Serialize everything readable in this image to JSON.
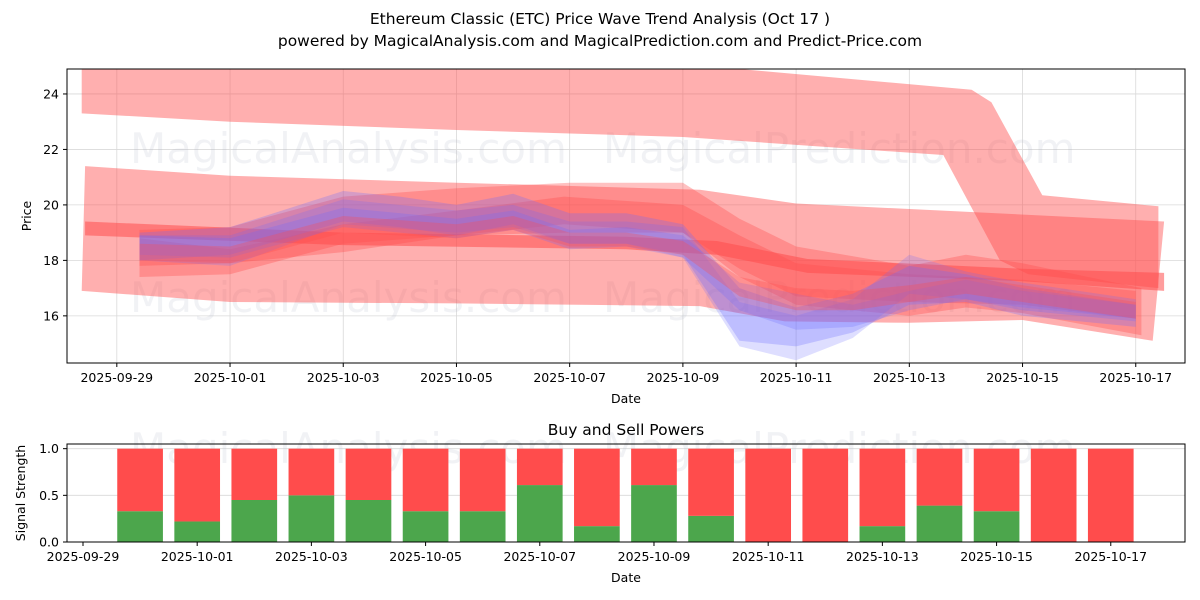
{
  "header": {
    "title": "Ethereum Classic (ETC) Price Wave Trend Analysis (Oct 17 )",
    "subtitle": "powered by MagicalAnalysis.com and MagicalPrediction.com and Predict-Price.com"
  },
  "watermarks": [
    "MagicalAnalysis.com",
    "MagicalPrediction.com"
  ],
  "colors": {
    "band_red": "#ff4d4d",
    "band_blue": "#6a6aff",
    "buy": "#4ca64c",
    "sell": "#ff4c4c",
    "grid": "#d9d9d9"
  },
  "chart_data": [
    {
      "type": "area",
      "title": "",
      "xlabel": "Date",
      "ylabel": "Price",
      "x_origin_date": "2025-09-29",
      "x_unit": "days since 2025-09-29",
      "xlim": [
        -0.88,
        18.87
      ],
      "ylim": [
        14.3,
        24.9
      ],
      "grid": true,
      "x_tick_labels": [
        "2025-09-29",
        "2025-10-01",
        "2025-10-03",
        "2025-10-05",
        "2025-10-07",
        "2025-10-09",
        "2025-10-11",
        "2025-10-13",
        "2025-10-15",
        "2025-10-17"
      ],
      "x_ticks": [
        0,
        2,
        4,
        6,
        8,
        10,
        12,
        14,
        16,
        18
      ],
      "y_ticks": [
        16,
        18,
        20,
        22,
        24
      ],
      "y_tick_labels": [
        "16",
        "18",
        "20",
        "22",
        "24"
      ],
      "bands": [
        {
          "name": "long-wave-upper",
          "color": "red",
          "opacity": 0.45,
          "upper": [
            [
              -0.62,
              25.6
            ],
            [
              5,
              25.3
            ],
            [
              11,
              24.9
            ],
            [
              15.1,
              24.15
            ],
            [
              15.45,
              23.7
            ],
            [
              16.35,
              20.35
            ],
            [
              18.4,
              19.95
            ]
          ],
          "lower": [
            [
              -0.62,
              23.3
            ],
            [
              2,
              23.0
            ],
            [
              6,
              22.7
            ],
            [
              10,
              22.45
            ],
            [
              14.6,
              21.8
            ],
            [
              15.6,
              18.0
            ],
            [
              16.1,
              17.5
            ],
            [
              18.4,
              17.0
            ]
          ]
        },
        {
          "name": "long-wave-wide",
          "color": "red",
          "opacity": 0.45,
          "upper": [
            [
              -0.56,
              21.4
            ],
            [
              2,
              21.05
            ],
            [
              6,
              20.8
            ],
            [
              10.3,
              20.55
            ],
            [
              12,
              20.05
            ],
            [
              18.5,
              19.4
            ]
          ],
          "lower": [
            [
              -0.62,
              16.9
            ],
            [
              2,
              16.5
            ],
            [
              6,
              16.45
            ],
            [
              10.3,
              16.35
            ],
            [
              11.8,
              15.8
            ],
            [
              14,
              15.75
            ],
            [
              16,
              15.85
            ],
            [
              18.3,
              15.1
            ]
          ]
        },
        {
          "name": "trend-line",
          "color": "red",
          "opacity": 0.55,
          "upper": [
            [
              -0.56,
              19.4
            ],
            [
              4,
              19.0
            ],
            [
              9,
              18.85
            ],
            [
              10.6,
              18.7
            ],
            [
              12.2,
              18.05
            ],
            [
              16,
              17.7
            ],
            [
              18.5,
              17.55
            ]
          ],
          "lower": [
            [
              -0.56,
              18.9
            ],
            [
              4,
              18.55
            ],
            [
              9,
              18.4
            ],
            [
              10.6,
              18.2
            ],
            [
              12.2,
              17.55
            ],
            [
              16,
              17.25
            ],
            [
              18.5,
              16.9
            ]
          ]
        },
        {
          "name": "wave-1",
          "color": "red",
          "opacity": 0.35,
          "upper": [
            [
              0.4,
              19.1
            ],
            [
              2,
              19.2
            ],
            [
              4,
              20.3
            ],
            [
              6,
              20.6
            ],
            [
              8,
              20.8
            ],
            [
              10,
              20.8
            ],
            [
              11,
              19.5
            ],
            [
              12,
              18.5
            ],
            [
              14,
              17.8
            ],
            [
              15,
              18.2
            ],
            [
              16,
              17.9
            ],
            [
              18.1,
              17.0
            ]
          ],
          "lower": [
            [
              0.4,
              17.4
            ],
            [
              2,
              17.5
            ],
            [
              4,
              18.6
            ],
            [
              6,
              18.9
            ],
            [
              8,
              19.0
            ],
            [
              10,
              19.0
            ],
            [
              11,
              17.4
            ],
            [
              12,
              16.4
            ],
            [
              14,
              16.0
            ],
            [
              15,
              16.3
            ],
            [
              16,
              16.1
            ],
            [
              18.1,
              15.3
            ]
          ]
        },
        {
          "name": "wave-2",
          "color": "red",
          "opacity": 0.35,
          "upper": [
            [
              0.4,
              18.8
            ],
            [
              2,
              18.4
            ],
            [
              4,
              19.3
            ],
            [
              6,
              19.8
            ],
            [
              7.9,
              20.3
            ],
            [
              10,
              20.0
            ],
            [
              11,
              18.9
            ],
            [
              12,
              17.9
            ],
            [
              14,
              17.5
            ],
            [
              16,
              17.3
            ],
            [
              18,
              16.9
            ]
          ],
          "lower": [
            [
              0.4,
              17.8
            ],
            [
              2,
              17.9
            ],
            [
              4,
              18.3
            ],
            [
              6,
              18.9
            ],
            [
              7.9,
              19.3
            ],
            [
              10,
              19.0
            ],
            [
              11,
              17.7
            ],
            [
              12,
              16.7
            ],
            [
              14,
              16.5
            ],
            [
              16,
              16.4
            ],
            [
              18,
              15.9
            ]
          ]
        },
        {
          "name": "wave-blue-1",
          "color": "blue",
          "opacity": 0.28,
          "upper": [
            [
              0.4,
              19.0
            ],
            [
              2,
              19.2
            ],
            [
              4,
              20.5
            ],
            [
              5,
              20.3
            ],
            [
              6,
              20.0
            ],
            [
              7,
              20.4
            ],
            [
              8,
              19.7
            ],
            [
              9,
              19.7
            ],
            [
              10,
              19.3
            ],
            [
              11,
              17.0
            ],
            [
              12,
              16.3
            ],
            [
              13,
              16.8
            ],
            [
              14,
              17.8
            ],
            [
              15,
              17.5
            ],
            [
              16,
              17.0
            ],
            [
              18,
              16.4
            ]
          ],
          "lower": [
            [
              0.4,
              18.0
            ],
            [
              2,
              18.2
            ],
            [
              4,
              19.4
            ],
            [
              5,
              19.2
            ],
            [
              6,
              18.9
            ],
            [
              7,
              19.3
            ],
            [
              8,
              18.6
            ],
            [
              9,
              18.6
            ],
            [
              10,
              18.2
            ],
            [
              11,
              15.1
            ],
            [
              12,
              14.9
            ],
            [
              13,
              15.4
            ],
            [
              14,
              16.4
            ],
            [
              15,
              16.5
            ],
            [
              16,
              16.0
            ],
            [
              18,
              15.6
            ]
          ]
        },
        {
          "name": "wave-blue-2",
          "color": "blue",
          "opacity": 0.22,
          "upper": [
            [
              0.4,
              18.9
            ],
            [
              2,
              18.9
            ],
            [
              4,
              20.2
            ],
            [
              6,
              19.8
            ],
            [
              7,
              20.0
            ],
            [
              8,
              19.4
            ],
            [
              9,
              19.4
            ],
            [
              10,
              19.2
            ],
            [
              11,
              16.5
            ],
            [
              12,
              16.0
            ],
            [
              13,
              16.6
            ],
            [
              14,
              18.2
            ],
            [
              15,
              17.6
            ],
            [
              16,
              17.2
            ],
            [
              18,
              16.6
            ]
          ],
          "lower": [
            [
              0.4,
              18.0
            ],
            [
              2,
              17.8
            ],
            [
              4,
              19.3
            ],
            [
              6,
              19.0
            ],
            [
              7,
              19.2
            ],
            [
              8,
              18.6
            ],
            [
              9,
              18.6
            ],
            [
              10,
              18.1
            ],
            [
              11,
              14.9
            ],
            [
              12,
              14.4
            ],
            [
              13,
              15.2
            ],
            [
              14,
              16.8
            ],
            [
              15,
              16.6
            ],
            [
              16,
              16.3
            ],
            [
              18,
              15.9
            ]
          ]
        },
        {
          "name": "wave-blue-3",
          "color": "blue",
          "opacity": 0.25,
          "upper": [
            [
              0.4,
              18.9
            ],
            [
              2,
              18.8
            ],
            [
              4,
              19.9
            ],
            [
              6,
              19.5
            ],
            [
              7,
              19.8
            ],
            [
              8,
              19.1
            ],
            [
              9,
              19.2
            ],
            [
              10,
              18.9
            ],
            [
              11,
              17.2
            ],
            [
              12,
              16.8
            ],
            [
              13,
              16.4
            ],
            [
              14,
              16.9
            ],
            [
              15,
              17.3
            ],
            [
              16,
              16.9
            ],
            [
              18,
              16.4
            ]
          ],
          "lower": [
            [
              0.4,
              18.2
            ],
            [
              2,
              18.1
            ],
            [
              4,
              19.2
            ],
            [
              6,
              18.8
            ],
            [
              7,
              19.1
            ],
            [
              8,
              18.4
            ],
            [
              9,
              18.5
            ],
            [
              10,
              18.1
            ],
            [
              11,
              16.2
            ],
            [
              12,
              15.5
            ],
            [
              13,
              15.6
            ],
            [
              14,
              16.2
            ],
            [
              15,
              16.6
            ],
            [
              16,
              16.2
            ],
            [
              18,
              15.8
            ]
          ]
        },
        {
          "name": "wave-3",
          "color": "red",
          "opacity": 0.3,
          "upper": [
            [
              0.4,
              18.6
            ],
            [
              2,
              18.5
            ],
            [
              4,
              19.6
            ],
            [
              6,
              19.3
            ],
            [
              7,
              19.6
            ],
            [
              8,
              19.0
            ],
            [
              9,
              19.0
            ],
            [
              10,
              18.7
            ],
            [
              11,
              17.4
            ],
            [
              12,
              17.0
            ],
            [
              13,
              16.9
            ],
            [
              14,
              17.1
            ],
            [
              15,
              17.4
            ],
            [
              16,
              17.1
            ],
            [
              18,
              16.5
            ]
          ],
          "lower": [
            [
              0.4,
              18.0
            ],
            [
              2,
              17.9
            ],
            [
              4,
              19.0
            ],
            [
              6,
              18.8
            ],
            [
              7,
              19.1
            ],
            [
              8,
              18.5
            ],
            [
              9,
              18.5
            ],
            [
              10,
              18.2
            ],
            [
              11,
              16.7
            ],
            [
              12,
              16.2
            ],
            [
              13,
              16.2
            ],
            [
              14,
              16.5
            ],
            [
              15,
              16.8
            ],
            [
              16,
              16.5
            ],
            [
              18,
              15.9
            ]
          ]
        }
      ]
    },
    {
      "type": "bar",
      "title": "Buy and Sell Powers",
      "xlabel": "Date",
      "ylabel": "Signal Strength",
      "ylim": [
        0,
        1.05
      ],
      "xlim": [
        -0.28,
        19.3
      ],
      "grid": true,
      "y_ticks": [
        0.0,
        0.5,
        1.0
      ],
      "y_tick_labels": [
        "0.0",
        "0.5",
        "1.0"
      ],
      "x_ticks": [
        0,
        2,
        4,
        6,
        8,
        10,
        12,
        14,
        16,
        18
      ],
      "x_tick_labels": [
        "2025-09-29",
        "2025-10-01",
        "2025-10-03",
        "2025-10-05",
        "2025-10-07",
        "2025-10-09",
        "2025-10-11",
        "2025-10-13",
        "2025-10-15",
        "2025-10-17"
      ],
      "categories": [
        "2025-09-30",
        "2025-10-01",
        "2025-10-02",
        "2025-10-03",
        "2025-10-04",
        "2025-10-05",
        "2025-10-06",
        "2025-10-07",
        "2025-10-08",
        "2025-10-09",
        "2025-10-10",
        "2025-10-11",
        "2025-10-12",
        "2025-10-13",
        "2025-10-14",
        "2025-10-15",
        "2025-10-16",
        "2025-10-17"
      ],
      "series": [
        {
          "name": "Buy",
          "color": "#4ca64c",
          "values": [
            0.33,
            0.22,
            0.45,
            0.5,
            0.45,
            0.33,
            0.33,
            0.61,
            0.17,
            0.61,
            0.28,
            0.0,
            0.0,
            0.17,
            0.39,
            0.33,
            0.0,
            0.0
          ]
        },
        {
          "name": "Sell",
          "color": "#ff4c4c",
          "values": [
            0.67,
            0.78,
            0.55,
            0.5,
            0.55,
            0.67,
            0.67,
            0.39,
            0.83,
            0.39,
            0.72,
            1.0,
            1.0,
            0.83,
            0.61,
            0.67,
            1.0,
            1.0
          ]
        }
      ]
    }
  ]
}
